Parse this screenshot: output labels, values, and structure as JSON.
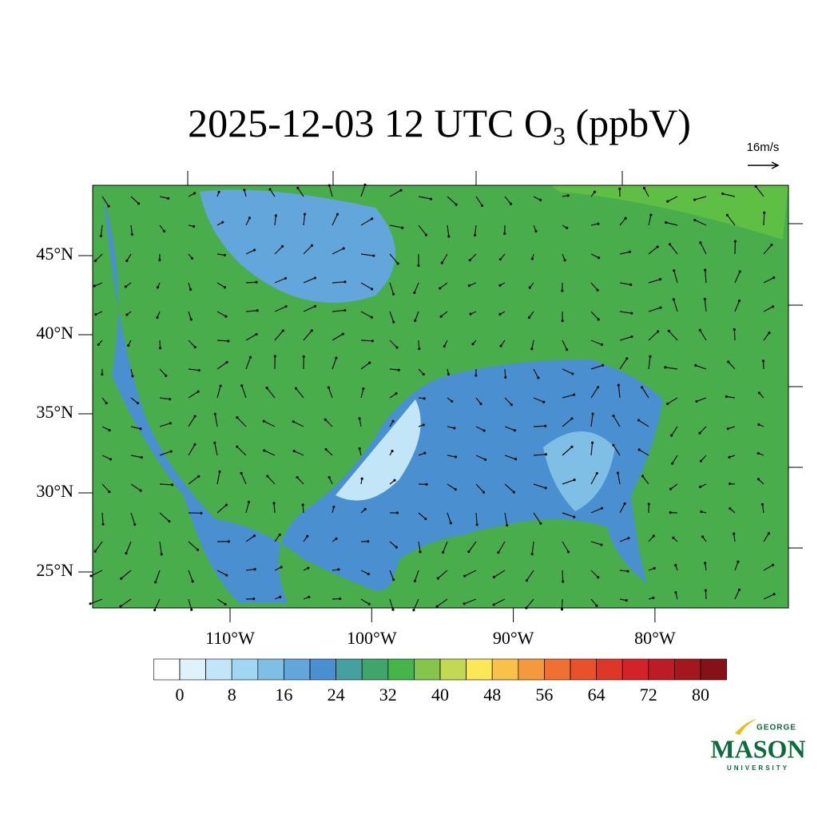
{
  "title": {
    "main": "2025-12-03 12 UTC O",
    "subscript": "3",
    "suffix": " (ppbV)"
  },
  "wind_reference": "16m/s",
  "map": {
    "lat_labels": [
      {
        "value": 45,
        "label": "45°N"
      },
      {
        "value": 40,
        "label": "40°N"
      },
      {
        "value": 35,
        "label": "35°N"
      },
      {
        "value": 30,
        "label": "30°N"
      },
      {
        "value": 25,
        "label": "25°N"
      }
    ],
    "lon_labels": [
      {
        "value": -110,
        "label": "110°W"
      },
      {
        "value": -100,
        "label": "100°W"
      },
      {
        "value": -90,
        "label": "90°W"
      },
      {
        "value": -80,
        "label": "80°W"
      }
    ]
  },
  "colorbar": {
    "ticks": [
      0,
      8,
      16,
      24,
      32,
      40,
      48,
      56,
      64,
      72,
      80
    ],
    "boundaries": [
      0,
      4,
      8,
      12,
      16,
      20,
      24,
      28,
      32,
      36,
      40,
      44,
      48,
      52,
      56,
      60,
      64,
      68,
      72,
      76,
      80
    ],
    "colors": [
      "#ffffff",
      "#dff1fb",
      "#c2e6f7",
      "#9fd6f2",
      "#7fbfe6",
      "#63a6db",
      "#4a8fcf",
      "#45a0a0",
      "#3fa56a",
      "#45b44a",
      "#86c54c",
      "#c3d954",
      "#fbe858",
      "#f9c04a",
      "#f59a3c",
      "#ef7030",
      "#e8512c",
      "#de3729",
      "#d32229",
      "#bd1c26",
      "#a4171f",
      "#861218"
    ]
  },
  "logo": {
    "top": "GEORGE",
    "main": "MASON",
    "bottom": "UNIVERSITY"
  }
}
